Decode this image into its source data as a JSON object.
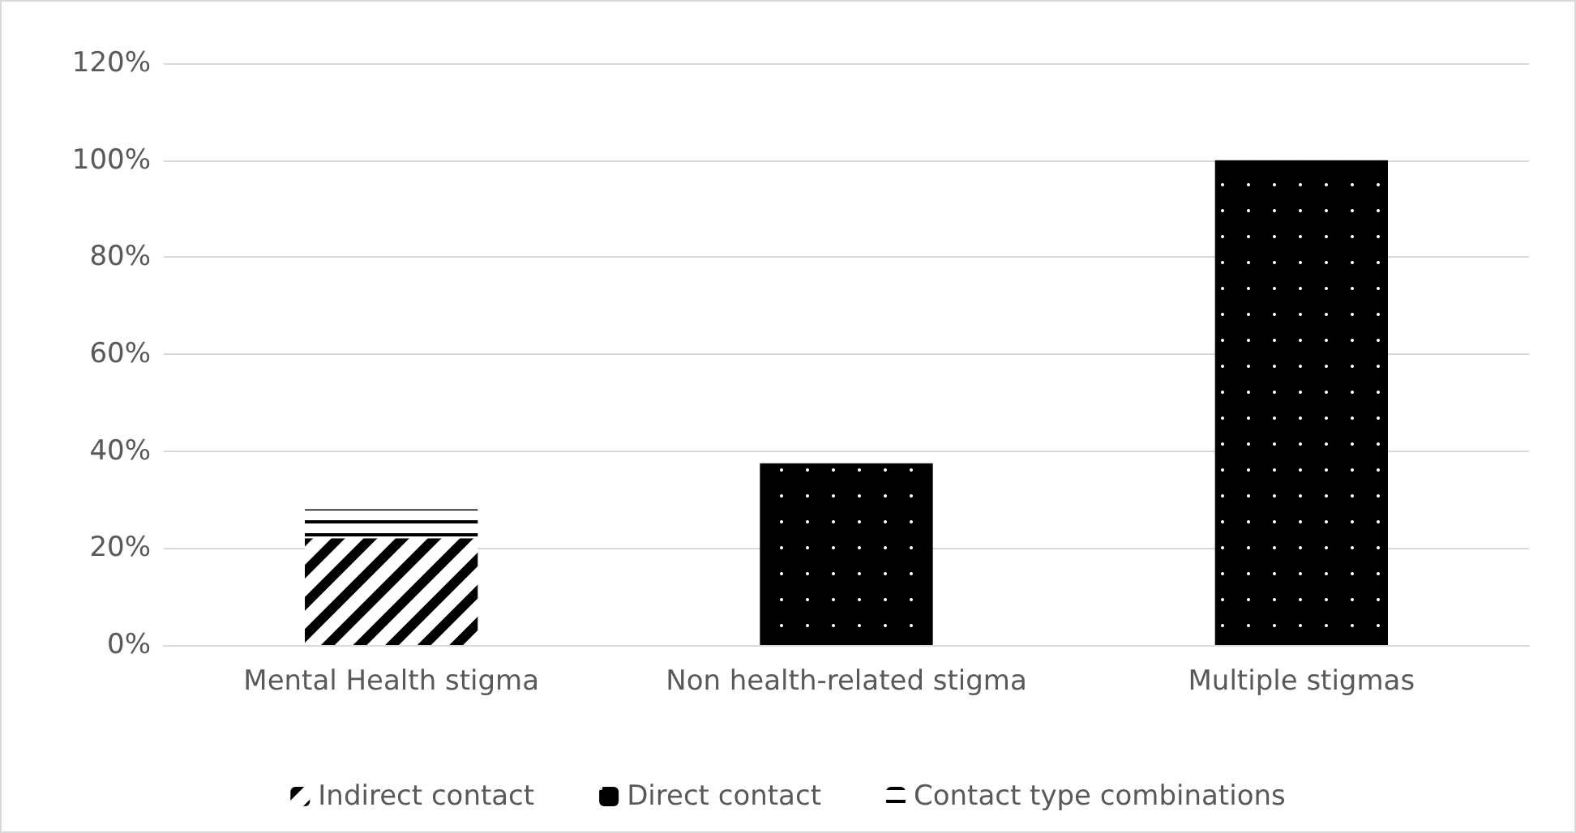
{
  "chart_data": {
    "type": "bar",
    "stacked": true,
    "categories": [
      "Mental Health stigma",
      "Non health-related stigma",
      "Multiple stigmas"
    ],
    "series": [
      {
        "name": "Indirect contact",
        "color": "#000000",
        "values": [
          22,
          0,
          0
        ]
      },
      {
        "name": "Direct contact",
        "color": "#000000",
        "values": [
          0,
          37.5,
          100
        ]
      },
      {
        "name": "Contact type combinations",
        "color": "#000000",
        "values": [
          6,
          0,
          0
        ]
      }
    ],
    "ylim": [
      0,
      120
    ],
    "yticks": [
      {
        "value": 0,
        "label": "0%"
      },
      {
        "value": 20,
        "label": "20%"
      },
      {
        "value": 40,
        "label": "40%"
      },
      {
        "value": 60,
        "label": "60%"
      },
      {
        "value": 80,
        "label": "80%"
      },
      {
        "value": 100,
        "label": "100%"
      },
      {
        "value": 120,
        "label": "120%"
      }
    ],
    "grid": "y",
    "legend": "bottom"
  }
}
